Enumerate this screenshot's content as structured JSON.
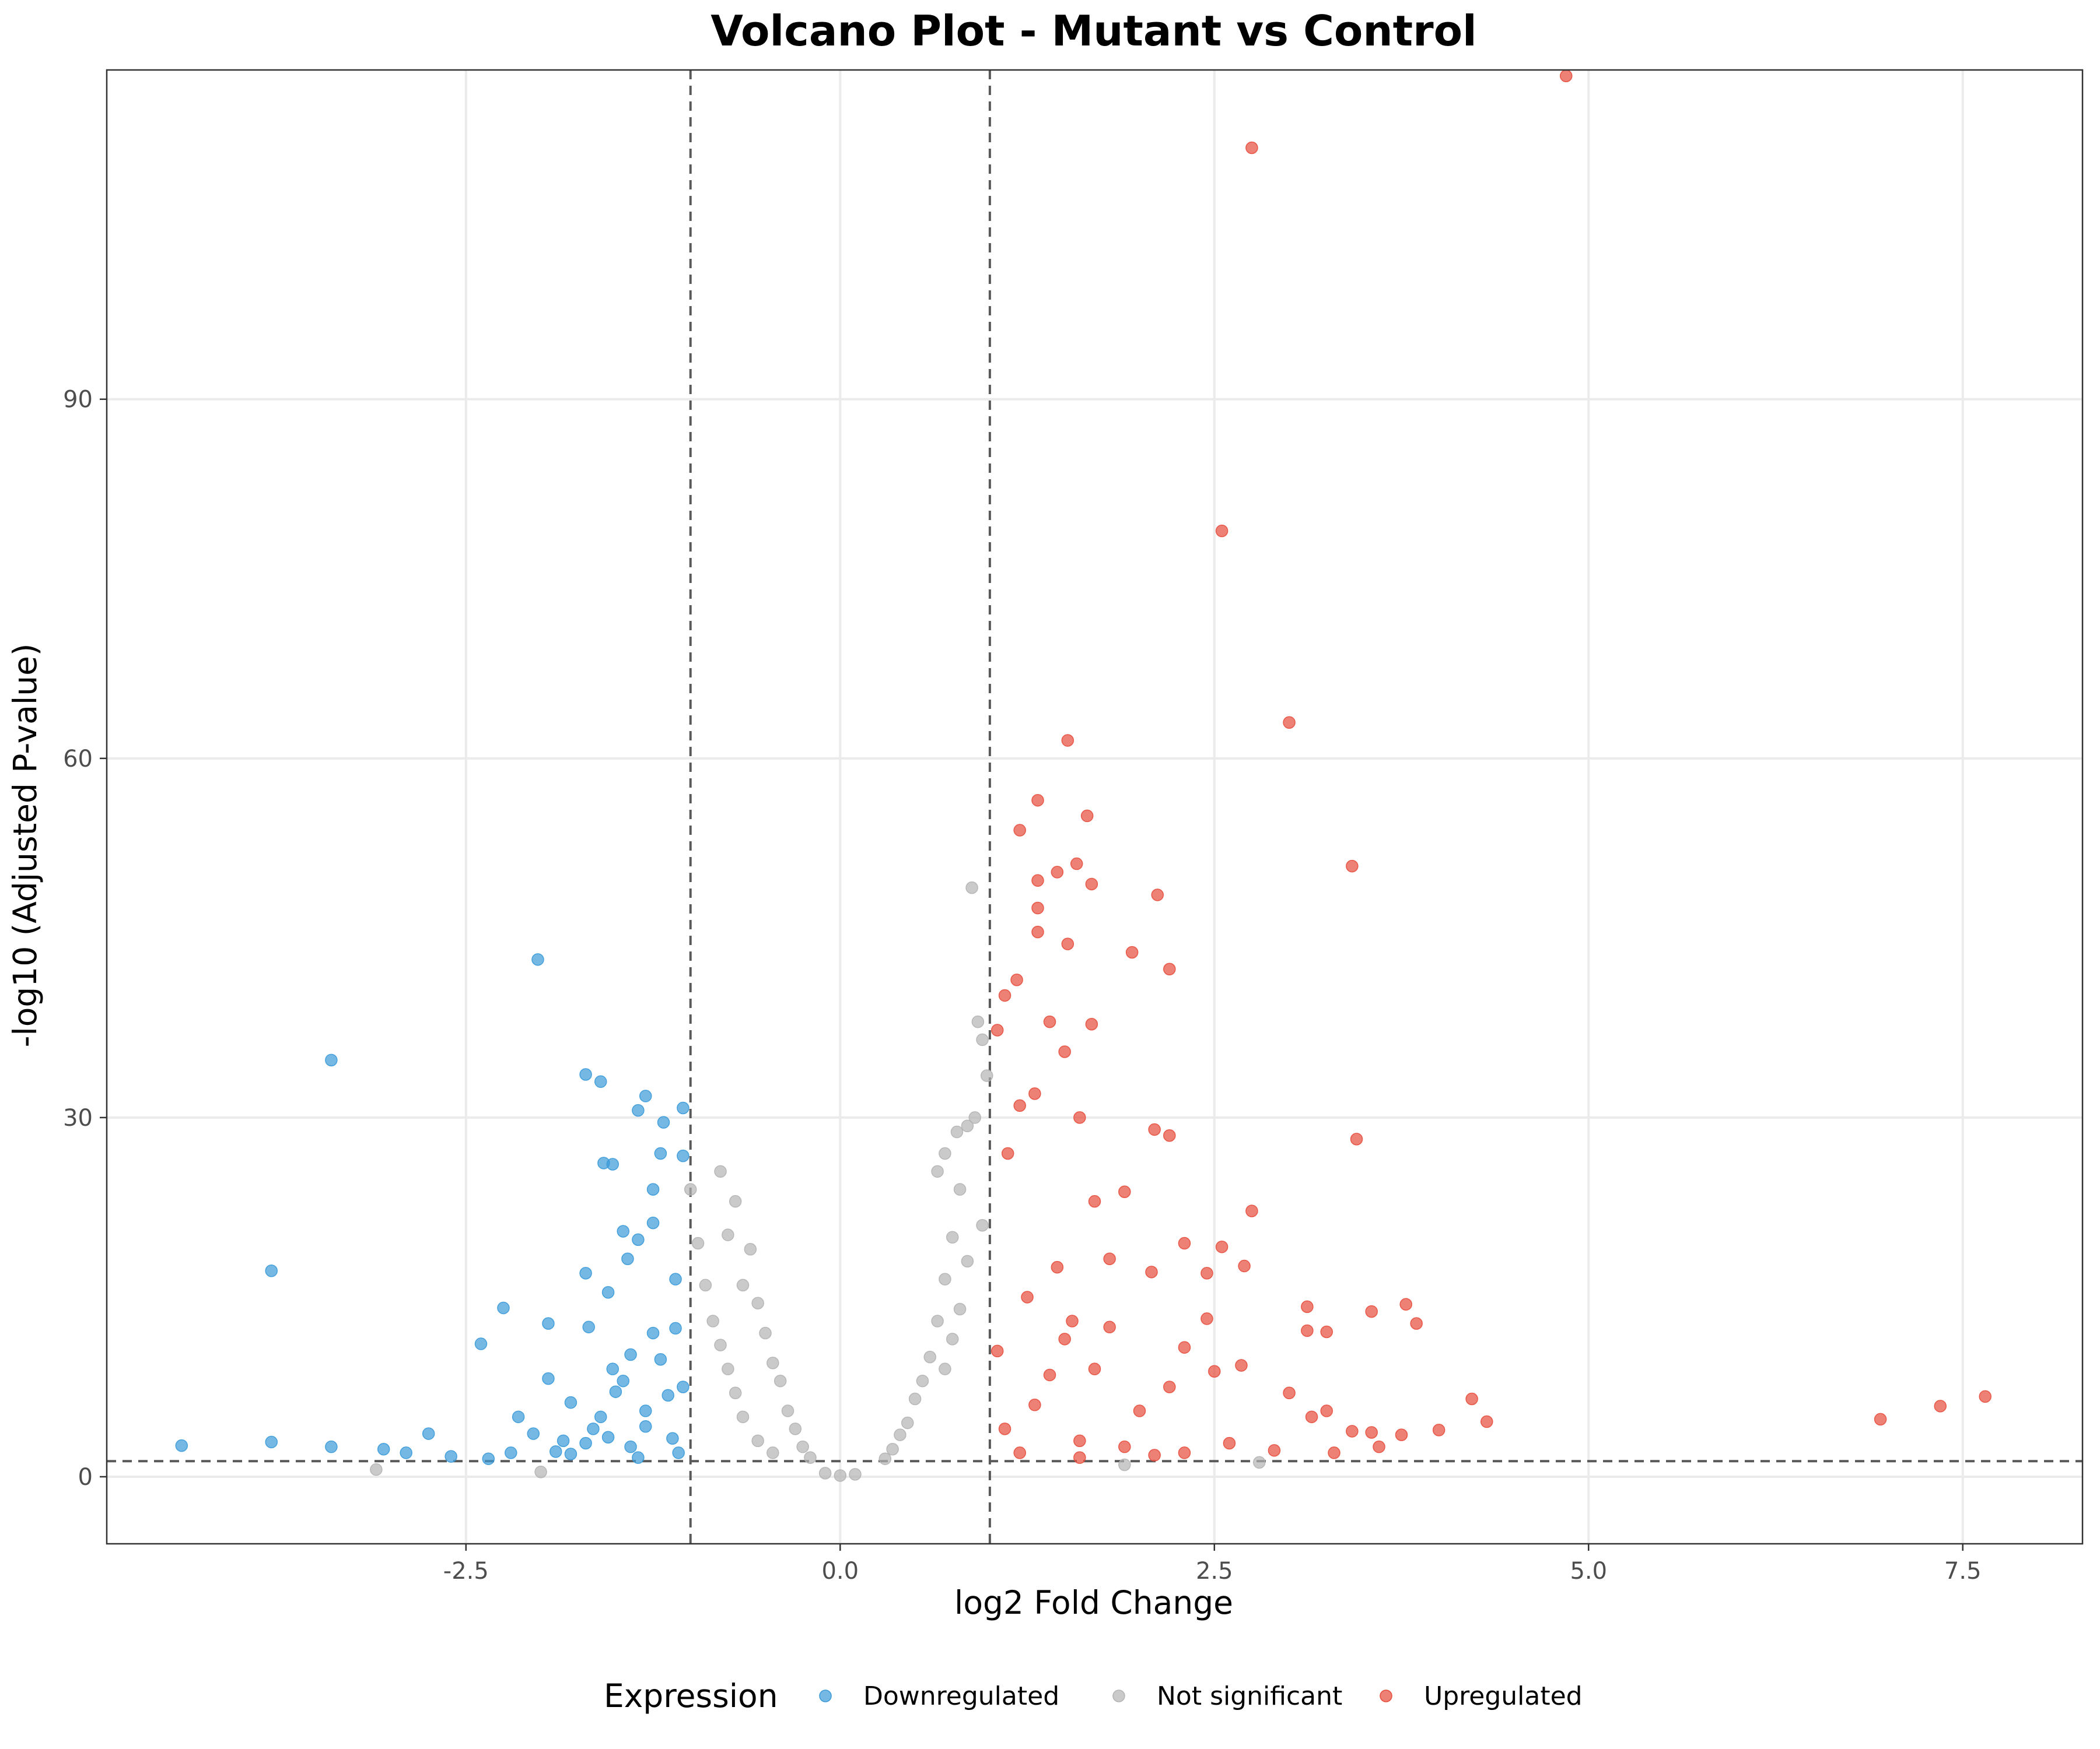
{
  "chart_data": {
    "type": "scatter",
    "title": "Volcano Plot - Mutant vs Control",
    "xlabel": "log2 Fold Change",
    "ylabel": "-log10 (Adjusted P-value)",
    "xlim": [
      -4.9,
      8.3
    ],
    "ylim": [
      -5.6,
      117.5
    ],
    "x_ticks": [
      -2.5,
      0.0,
      2.5,
      5.0,
      7.5
    ],
    "x_tick_labels": [
      "-2.5",
      "0.0",
      "2.5",
      "5.0",
      "7.5"
    ],
    "y_ticks": [
      0,
      30,
      60,
      90
    ],
    "y_tick_labels": [
      "0",
      "30",
      "60",
      "90"
    ],
    "grid": true,
    "thresholds": {
      "log2fc": [
        -1,
        1
      ],
      "neg_log10_padj": 1.3
    },
    "legend": {
      "title": "Expression",
      "position": "bottom"
    },
    "series": [
      {
        "name": "Downregulated",
        "color": "#3a9ad9",
        "points": [
          [
            -4.4,
            2.6
          ],
          [
            -3.8,
            2.9
          ],
          [
            -3.8,
            17.2
          ],
          [
            -3.4,
            34.8
          ],
          [
            -3.4,
            2.5
          ],
          [
            -3.05,
            2.3
          ],
          [
            -2.9,
            2.0
          ],
          [
            -2.75,
            3.6
          ],
          [
            -2.6,
            1.7
          ],
          [
            -2.4,
            11.1
          ],
          [
            -2.25,
            14.1
          ],
          [
            -2.2,
            2.0
          ],
          [
            -2.05,
            3.6
          ],
          [
            -2.02,
            43.2
          ],
          [
            -1.95,
            12.8
          ],
          [
            -1.95,
            8.2
          ],
          [
            -1.85,
            3.0
          ],
          [
            -1.7,
            33.6
          ],
          [
            -1.7,
            17.0
          ],
          [
            -1.68,
            12.5
          ],
          [
            -1.6,
            33.0
          ],
          [
            -1.58,
            26.2
          ],
          [
            -1.52,
            26.1
          ],
          [
            -1.52,
            9.0
          ],
          [
            -1.45,
            20.5
          ],
          [
            -1.42,
            18.2
          ],
          [
            -1.35,
            30.6
          ],
          [
            -1.3,
            31.8
          ],
          [
            -1.25,
            21.2
          ],
          [
            -1.18,
            29.6
          ],
          [
            -1.1,
            16.5
          ],
          [
            -1.05,
            30.8
          ],
          [
            -1.05,
            26.8
          ],
          [
            -1.2,
            27.0
          ],
          [
            -1.25,
            24.0
          ],
          [
            -1.55,
            15.4
          ],
          [
            -1.35,
            19.8
          ],
          [
            -1.8,
            6.2
          ],
          [
            -1.6,
            5.0
          ],
          [
            -1.3,
            5.5
          ],
          [
            -1.15,
            6.8
          ],
          [
            -1.45,
            8.0
          ],
          [
            -1.65,
            4.0
          ],
          [
            -1.4,
            2.5
          ],
          [
            -1.12,
            3.2
          ],
          [
            -1.25,
            12.0
          ],
          [
            -1.5,
            7.1
          ],
          [
            -1.2,
            9.8
          ],
          [
            -1.7,
            2.8
          ],
          [
            -1.4,
            10.2
          ],
          [
            -1.05,
            7.5
          ],
          [
            -1.55,
            3.3
          ],
          [
            -1.3,
            4.2
          ],
          [
            -1.8,
            1.9
          ],
          [
            -1.1,
            12.4
          ],
          [
            -2.35,
            1.5
          ],
          [
            -2.15,
            5.0
          ],
          [
            -1.9,
            2.1
          ],
          [
            -1.35,
            1.6
          ],
          [
            -1.08,
            2.0
          ]
        ]
      },
      {
        "name": "Not significant",
        "color": "#b3b3b3",
        "points": [
          [
            -3.1,
            0.6
          ],
          [
            -2.0,
            0.4
          ],
          [
            -1.0,
            24.0
          ],
          [
            -0.95,
            19.5
          ],
          [
            -0.8,
            25.5
          ],
          [
            -0.75,
            20.2
          ],
          [
            -0.7,
            23.0
          ],
          [
            -0.65,
            16.0
          ],
          [
            -0.6,
            19.0
          ],
          [
            -0.55,
            14.5
          ],
          [
            -0.5,
            12.0
          ],
          [
            -0.45,
            9.5
          ],
          [
            -0.4,
            8.0
          ],
          [
            -0.35,
            5.5
          ],
          [
            -0.3,
            4.0
          ],
          [
            -0.25,
            2.5
          ],
          [
            -0.2,
            1.6
          ],
          [
            -0.9,
            16.0
          ],
          [
            -0.85,
            13.0
          ],
          [
            -0.8,
            11.0
          ],
          [
            -0.75,
            9.0
          ],
          [
            -0.7,
            7.0
          ],
          [
            -0.65,
            5.0
          ],
          [
            -0.55,
            3.0
          ],
          [
            -0.45,
            2.0
          ],
          [
            0.65,
            25.5
          ],
          [
            0.7,
            27.0
          ],
          [
            0.78,
            28.8
          ],
          [
            0.8,
            24.0
          ],
          [
            0.85,
            29.3
          ],
          [
            0.9,
            30.0
          ],
          [
            0.92,
            38.0
          ],
          [
            0.95,
            36.5
          ],
          [
            0.98,
            33.5
          ],
          [
            0.88,
            49.2
          ],
          [
            0.75,
            20.0
          ],
          [
            0.7,
            16.5
          ],
          [
            0.65,
            13.0
          ],
          [
            0.6,
            10.0
          ],
          [
            0.55,
            8.0
          ],
          [
            0.5,
            6.5
          ],
          [
            0.45,
            4.5
          ],
          [
            0.4,
            3.5
          ],
          [
            0.35,
            2.3
          ],
          [
            0.3,
            1.5
          ],
          [
            0.85,
            18.0
          ],
          [
            0.8,
            14.0
          ],
          [
            0.75,
            11.5
          ],
          [
            0.7,
            9.0
          ],
          [
            0.95,
            21.0
          ],
          [
            0.0,
            0.1
          ],
          [
            0.1,
            0.2
          ],
          [
            -0.1,
            0.3
          ],
          [
            2.8,
            1.2
          ],
          [
            1.9,
            1.0
          ]
        ]
      },
      {
        "name": "Upregulated",
        "color": "#e74c3c",
        "points": [
          [
            4.85,
            117.0
          ],
          [
            2.75,
            111.0
          ],
          [
            2.55,
            79.0
          ],
          [
            3.0,
            63.0
          ],
          [
            1.52,
            61.5
          ],
          [
            1.65,
            55.2
          ],
          [
            1.32,
            56.5
          ],
          [
            1.2,
            54.0
          ],
          [
            1.58,
            51.2
          ],
          [
            3.42,
            51.0
          ],
          [
            1.45,
            50.5
          ],
          [
            1.32,
            49.8
          ],
          [
            1.68,
            49.5
          ],
          [
            2.12,
            48.6
          ],
          [
            1.32,
            47.5
          ],
          [
            1.32,
            45.5
          ],
          [
            1.52,
            44.5
          ],
          [
            1.95,
            43.8
          ],
          [
            2.2,
            42.4
          ],
          [
            1.18,
            41.5
          ],
          [
            1.1,
            40.2
          ],
          [
            1.4,
            38.0
          ],
          [
            1.68,
            37.8
          ],
          [
            1.05,
            37.3
          ],
          [
            1.5,
            35.5
          ],
          [
            3.45,
            28.2
          ],
          [
            2.75,
            22.2
          ],
          [
            1.7,
            23.0
          ],
          [
            2.1,
            29.0
          ],
          [
            2.2,
            28.5
          ],
          [
            1.6,
            30.0
          ],
          [
            1.3,
            32.0
          ],
          [
            1.2,
            31.0
          ],
          [
            1.12,
            27.0
          ],
          [
            1.9,
            23.8
          ],
          [
            2.3,
            19.5
          ],
          [
            2.55,
            19.2
          ],
          [
            2.7,
            17.6
          ],
          [
            2.45,
            17.0
          ],
          [
            2.08,
            17.1
          ],
          [
            1.8,
            18.2
          ],
          [
            1.45,
            17.5
          ],
          [
            1.55,
            13.0
          ],
          [
            1.8,
            12.5
          ],
          [
            2.45,
            13.2
          ],
          [
            3.12,
            14.2
          ],
          [
            3.55,
            13.8
          ],
          [
            3.78,
            14.4
          ],
          [
            3.85,
            12.8
          ],
          [
            3.12,
            12.2
          ],
          [
            3.25,
            12.1
          ],
          [
            2.3,
            10.8
          ],
          [
            2.5,
            8.8
          ],
          [
            2.68,
            9.3
          ],
          [
            3.15,
            5.0
          ],
          [
            3.25,
            5.5
          ],
          [
            3.42,
            3.8
          ],
          [
            3.55,
            3.7
          ],
          [
            3.75,
            3.5
          ],
          [
            4.0,
            3.9
          ],
          [
            4.22,
            6.5
          ],
          [
            4.32,
            4.6
          ],
          [
            6.95,
            4.8
          ],
          [
            7.35,
            5.9
          ],
          [
            7.65,
            6.7
          ],
          [
            2.0,
            5.5
          ],
          [
            1.3,
            6.0
          ],
          [
            1.1,
            4.0
          ],
          [
            1.6,
            3.0
          ],
          [
            1.9,
            2.5
          ],
          [
            2.3,
            2.0
          ],
          [
            2.6,
            2.8
          ],
          [
            2.9,
            2.2
          ],
          [
            1.2,
            2.0
          ],
          [
            1.4,
            8.5
          ],
          [
            1.7,
            9.0
          ],
          [
            1.05,
            10.5
          ],
          [
            2.2,
            7.5
          ],
          [
            1.5,
            11.5
          ],
          [
            1.25,
            15.0
          ],
          [
            3.0,
            7.0
          ],
          [
            3.3,
            2.0
          ],
          [
            3.6,
            2.5
          ],
          [
            2.1,
            1.8
          ],
          [
            1.6,
            1.6
          ]
        ]
      }
    ]
  }
}
